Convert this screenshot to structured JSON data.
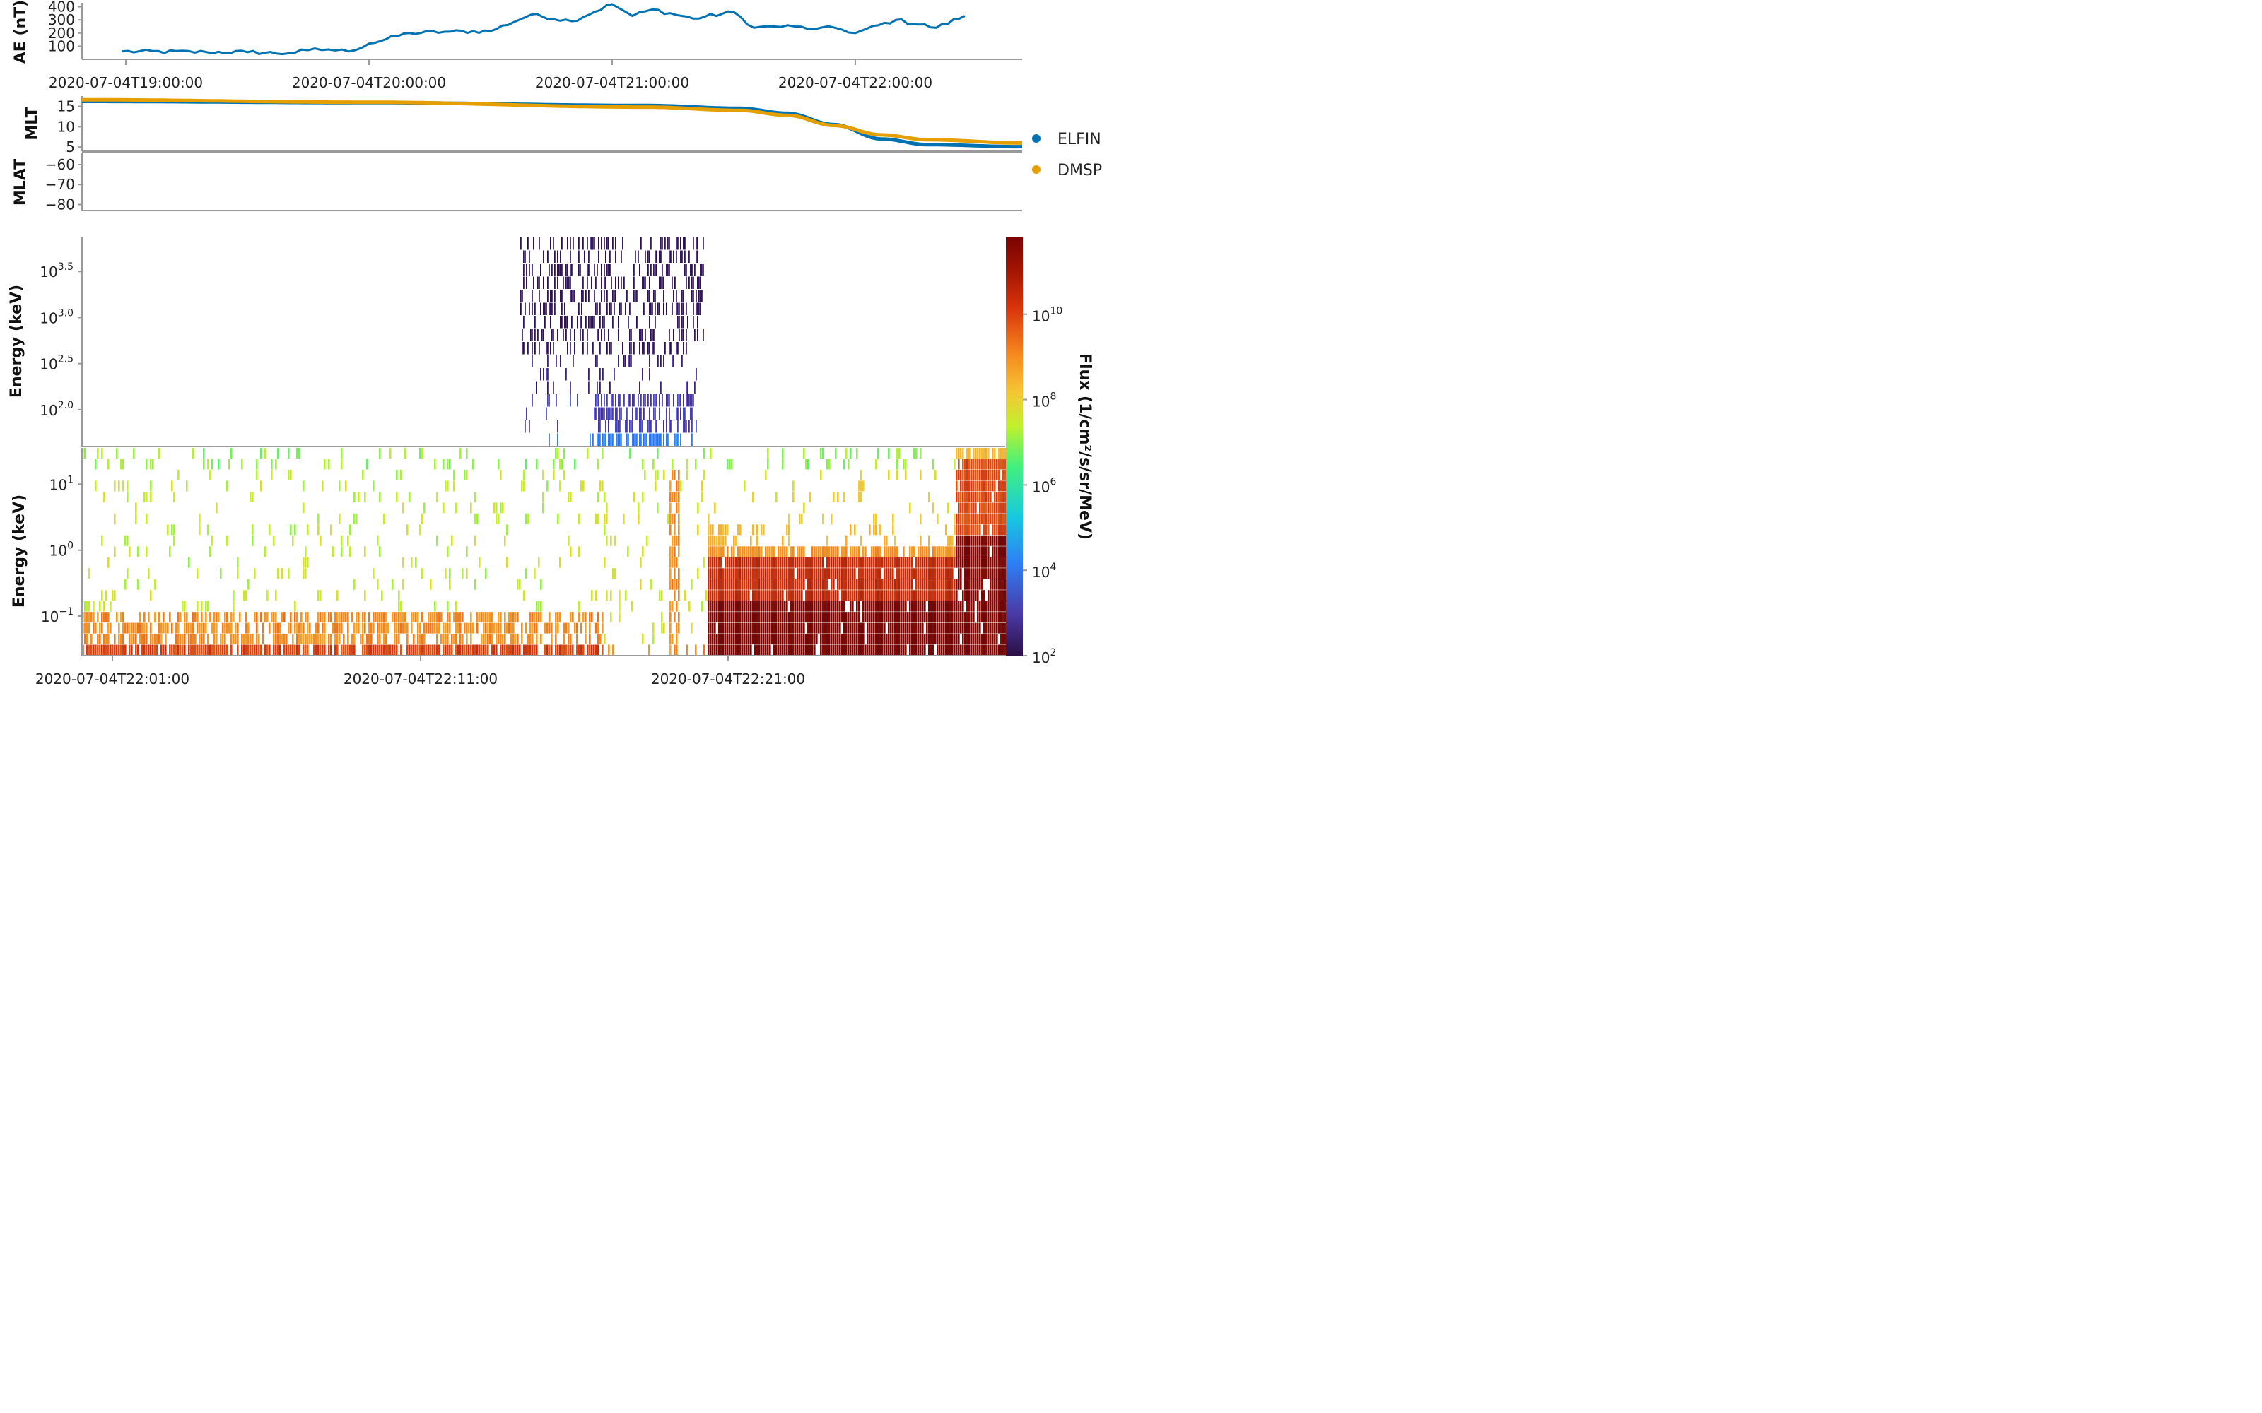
{
  "legend": [
    {
      "name": "ELFIN",
      "color": "#0072b2"
    },
    {
      "name": "DMSP",
      "color": "#e69f00"
    }
  ],
  "chart_data": [
    {
      "type": "line",
      "ylabel": "AE (nT)",
      "yticks": [
        "100",
        "200",
        "300",
        "400"
      ],
      "xticks": [
        "2020-07-04T19:00:00",
        "2020-07-04T20:00:00",
        "2020-07-04T21:00:00",
        "2020-07-04T22:00:00"
      ],
      "xlim": [
        "2020-07-04T18:49:00",
        "2020-07-04T22:41:00"
      ],
      "ylim": [
        0,
        430
      ],
      "series": [
        {
          "x": [
            "18:59",
            "19:20",
            "19:30",
            "19:40",
            "19:45",
            "19:50",
            "19:55",
            "20:00",
            "20:10",
            "20:20",
            "20:30",
            "20:40",
            "20:50",
            "21:00",
            "21:05",
            "21:10",
            "21:20",
            "21:30",
            "21:35",
            "21:40",
            "21:45",
            "21:50",
            "21:55",
            "22:00",
            "22:10",
            "22:20",
            "22:27"
          ],
          "values": [
            60,
            55,
            55,
            45,
            70,
            75,
            60,
            120,
            200,
            210,
            215,
            340,
            290,
            420,
            330,
            380,
            310,
            360,
            240,
            250,
            250,
            230,
            240,
            200,
            300,
            240,
            330
          ]
        }
      ]
    },
    {
      "type": "line",
      "ylabel": "MLT",
      "yticks": [
        "5",
        "10",
        "15"
      ],
      "ylim": [
        4,
        17.5
      ],
      "series": [
        {
          "name": "ELFIN",
          "x_frac": [
            0,
            0.3,
            0.6,
            0.7,
            0.75,
            0.8,
            0.85,
            0.9,
            1
          ],
          "values": [
            16.2,
            15.9,
            15.2,
            14.5,
            13.3,
            10.5,
            7.0,
            5.6,
            5.1
          ]
        },
        {
          "name": "DMSP",
          "x_frac": [
            0,
            0.3,
            0.6,
            0.7,
            0.75,
            0.8,
            0.85,
            0.9,
            1
          ],
          "values": [
            16.6,
            16.0,
            14.8,
            14.0,
            12.8,
            10.3,
            8.0,
            6.8,
            6.0
          ]
        }
      ]
    },
    {
      "type": "line",
      "ylabel": "MLAT",
      "yticks": [
        "−60",
        "−70",
        "−80"
      ],
      "ylim": [
        -83,
        -54
      ],
      "series": []
    },
    {
      "type": "heatmap",
      "ylabel": "Energy (keV)",
      "yscale": "log",
      "yticks": [
        "10^2.0",
        "10^2.5",
        "10^3.0",
        "10^3.5"
      ],
      "xticks": [
        "2020-07-04T22:01:00",
        "2020-07-04T22:11:00",
        "2020-07-04T22:21:00"
      ],
      "note_range_x_frac": [
        0.46,
        0.66
      ],
      "energy_log_range": [
        1.6,
        3.87
      ]
    },
    {
      "type": "heatmap",
      "ylabel": "Energy (keV)",
      "yscale": "log",
      "yticks": [
        "10^−1",
        "10^0",
        "10^1"
      ],
      "energy_log_range": [
        -1.6,
        1.55
      ]
    }
  ],
  "colorbar": {
    "label": "Flux (1/cm²/s/sr/MeV)",
    "ticks": [
      "10^2",
      "10^4",
      "10^6",
      "10^8",
      "10^10"
    ],
    "log_range": [
      2,
      11.8
    ]
  }
}
